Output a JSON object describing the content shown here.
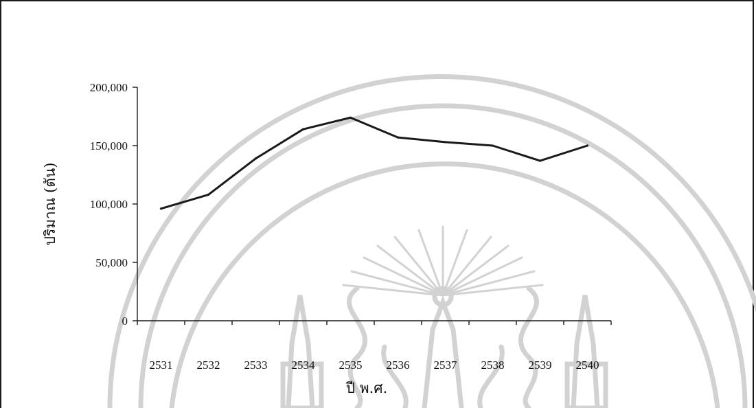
{
  "chart_data": {
    "type": "line",
    "title": "",
    "xlabel": "ปี พ.ศ.",
    "ylabel": "ปริมาณ (ตัน)",
    "categories": [
      "2531",
      "2532",
      "2533",
      "2534",
      "2535",
      "2536",
      "2537",
      "2538",
      "2539",
      "2540"
    ],
    "series": [
      {
        "values": [
          96000,
          108000,
          139000,
          164000,
          174000,
          157000,
          153000,
          150000,
          137000,
          150000
        ]
      }
    ],
    "ylim": [
      0,
      200000
    ],
    "yticks": [
      0,
      50000,
      100000,
      150000,
      200000
    ],
    "ytick_labels": [
      "0",
      "50,000",
      "100,000",
      "150,000",
      "200,000"
    ],
    "grid": false,
    "legend": "none",
    "line_color": "#1a1a1a"
  }
}
